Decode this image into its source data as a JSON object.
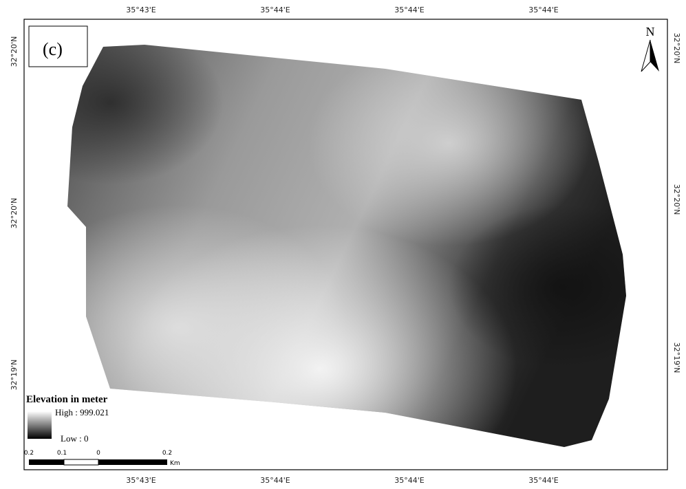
{
  "panel_label": "(c)",
  "north_label": "N",
  "top_labels": [
    "35°43'E",
    "35°44'E",
    "35°44'E",
    "35°44'E"
  ],
  "bottom_labels": [
    "35°43'E",
    "35°44'E",
    "35°44'E",
    "35°44'E"
  ],
  "left_labels": [
    "32°20'N",
    "32°20'N",
    "32°19'N"
  ],
  "right_labels": [
    "32°20'N",
    "32°20'N",
    "32°19'N"
  ],
  "legend": {
    "title": "Elevation in meter",
    "high": "High : 999.021",
    "low": "Low : 0"
  },
  "scale_bar": {
    "labels": [
      "0.2",
      "0.1",
      "0",
      "0.2"
    ],
    "unit": "Km"
  }
}
